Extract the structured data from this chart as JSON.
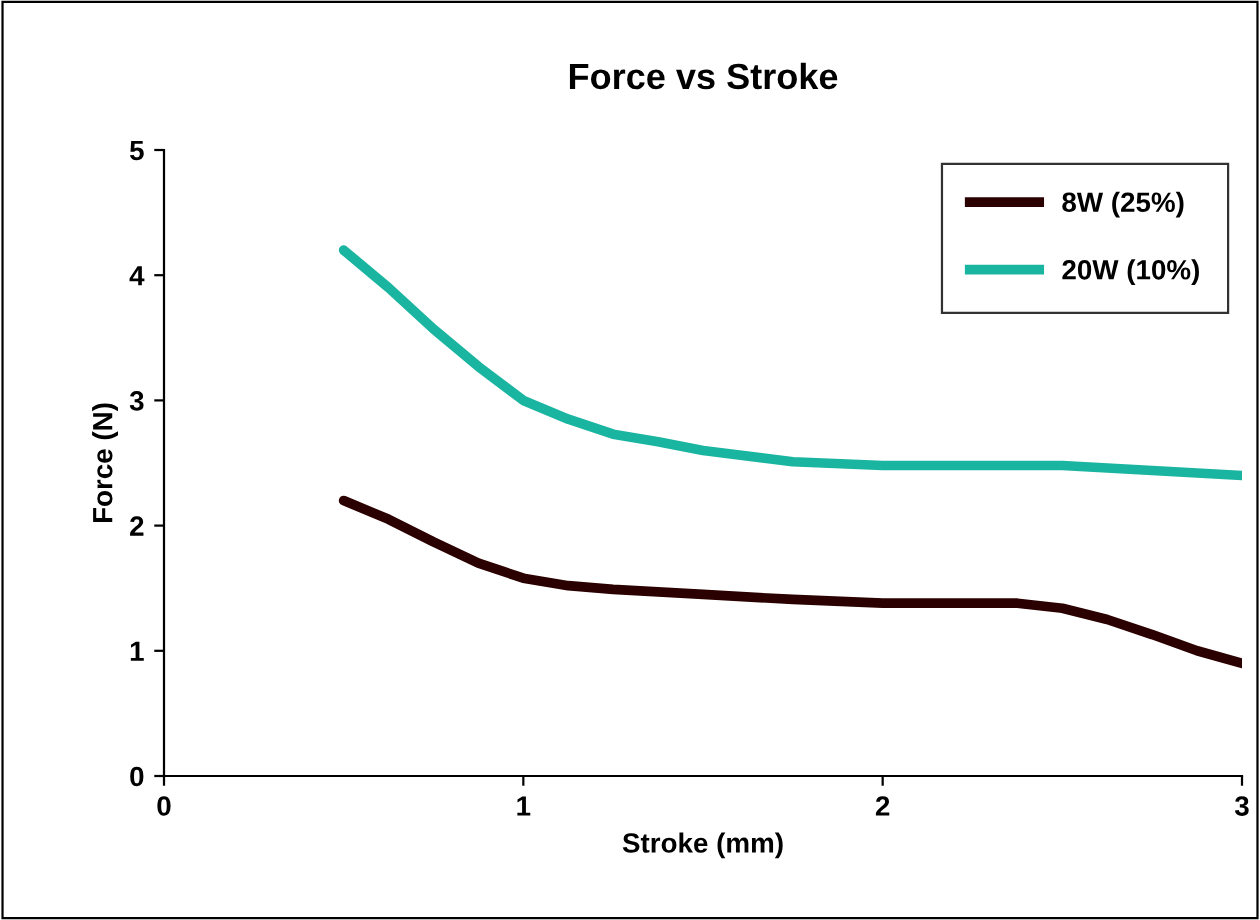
{
  "chart_data": {
    "type": "line",
    "title": "Force vs Stroke",
    "xlabel": "Stroke (mm)",
    "ylabel": "Force (N)",
    "xlim": [
      0,
      3
    ],
    "xticks": [
      0,
      1,
      2,
      3
    ],
    "ylim": [
      0,
      5
    ],
    "yticks": [
      0,
      1,
      2,
      3,
      4,
      5
    ],
    "grid": false,
    "legend": "top right",
    "marker": "none",
    "line_style": "solid",
    "series": [
      {
        "name": "8W (25%)",
        "color": "#2b0000",
        "x": [
          0.5,
          0.625,
          0.75,
          0.875,
          1.0,
          1.125,
          1.25,
          1.5,
          1.75,
          2.0,
          2.25,
          2.375,
          2.5,
          2.625,
          2.75,
          2.875,
          3.0
        ],
        "values": [
          2.2,
          2.05,
          1.87,
          1.7,
          1.58,
          1.52,
          1.49,
          1.45,
          1.41,
          1.38,
          1.38,
          1.38,
          1.34,
          1.25,
          1.13,
          1.0,
          0.9
        ]
      },
      {
        "name": "20W (10%)",
        "color": "#1ab5a0",
        "x": [
          0.5,
          0.625,
          0.75,
          0.875,
          1.0,
          1.125,
          1.25,
          1.375,
          1.5,
          1.75,
          2.0,
          2.25,
          2.5,
          2.75,
          3.0
        ],
        "values": [
          4.2,
          3.9,
          3.57,
          3.27,
          3.0,
          2.85,
          2.73,
          2.67,
          2.6,
          2.51,
          2.48,
          2.48,
          2.48,
          2.44,
          2.4
        ]
      }
    ]
  }
}
